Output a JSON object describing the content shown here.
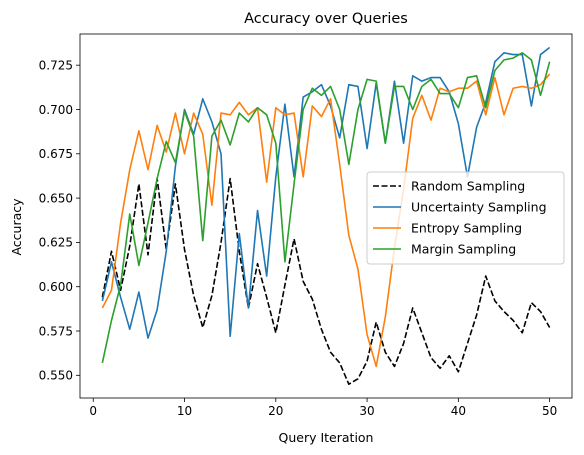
{
  "chart_data": {
    "type": "line",
    "title": "Accuracy over Queries",
    "xlabel": "Query Iteration",
    "ylabel": "Accuracy",
    "xlim": [
      -1.45,
      52.45
    ],
    "ylim": [
      0.5372,
      0.7426
    ],
    "x_ticks": [
      0,
      10,
      20,
      30,
      40,
      50
    ],
    "y_ticks": [
      0.55,
      0.575,
      0.6,
      0.625,
      0.65,
      0.675,
      0.7,
      0.725
    ],
    "x_tick_labels": [
      "0",
      "10",
      "20",
      "30",
      "40",
      "50"
    ],
    "y_tick_labels": [
      "0.550",
      "0.575",
      "0.600",
      "0.625",
      "0.650",
      "0.675",
      "0.700",
      "0.725"
    ],
    "grid": false,
    "legend_position": "center-right",
    "x": [
      1,
      2,
      3,
      4,
      5,
      6,
      7,
      8,
      9,
      10,
      11,
      12,
      13,
      14,
      15,
      16,
      17,
      18,
      19,
      20,
      21,
      22,
      23,
      24,
      25,
      26,
      27,
      28,
      29,
      30,
      31,
      32,
      33,
      34,
      35,
      36,
      37,
      38,
      39,
      40,
      41,
      42,
      43,
      44,
      45,
      46,
      47,
      48,
      49,
      50
    ],
    "series": [
      {
        "name": "Random Sampling",
        "color": "#000000",
        "dash": "dashed",
        "values": [
          0.594,
          0.62,
          0.598,
          0.623,
          0.658,
          0.618,
          0.661,
          0.621,
          0.658,
          0.621,
          0.595,
          0.577,
          0.595,
          0.625,
          0.661,
          0.62,
          0.588,
          0.613,
          0.594,
          0.574,
          0.601,
          0.627,
          0.603,
          0.593,
          0.576,
          0.563,
          0.557,
          0.545,
          0.548,
          0.558,
          0.58,
          0.563,
          0.555,
          0.568,
          0.588,
          0.574,
          0.56,
          0.554,
          0.561,
          0.552,
          0.568,
          0.584,
          0.606,
          0.592,
          0.586,
          0.581,
          0.574,
          0.591,
          0.586,
          0.577
        ]
      },
      {
        "name": "Uncertainty Sampling",
        "color": "#1f77b4",
        "dash": "solid",
        "values": [
          0.592,
          0.614,
          0.594,
          0.576,
          0.597,
          0.571,
          0.587,
          0.62,
          0.668,
          0.7,
          0.686,
          0.706,
          0.693,
          0.675,
          0.572,
          0.63,
          0.588,
          0.643,
          0.606,
          0.662,
          0.703,
          0.662,
          0.707,
          0.71,
          0.714,
          0.702,
          0.684,
          0.714,
          0.713,
          0.678,
          0.715,
          0.681,
          0.716,
          0.681,
          0.719,
          0.716,
          0.718,
          0.718,
          0.71,
          0.692,
          0.662,
          0.69,
          0.704,
          0.727,
          0.732,
          0.731,
          0.731,
          0.702,
          0.731,
          0.735
        ]
      },
      {
        "name": "Entropy Sampling",
        "color": "#ff7f0e",
        "dash": "solid",
        "values": [
          0.588,
          0.598,
          0.636,
          0.666,
          0.688,
          0.666,
          0.691,
          0.676,
          0.698,
          0.675,
          0.698,
          0.686,
          0.646,
          0.698,
          0.697,
          0.704,
          0.697,
          0.701,
          0.659,
          0.701,
          0.697,
          0.698,
          0.662,
          0.702,
          0.696,
          0.706,
          0.669,
          0.629,
          0.61,
          0.573,
          0.555,
          0.583,
          0.622,
          0.655,
          0.695,
          0.708,
          0.694,
          0.712,
          0.71,
          0.712,
          0.712,
          0.716,
          0.697,
          0.718,
          0.697,
          0.712,
          0.713,
          0.712,
          0.714,
          0.72
        ]
      },
      {
        "name": "Margin Sampling",
        "color": "#2ca02c",
        "dash": "solid",
        "values": [
          0.557,
          0.581,
          0.601,
          0.641,
          0.612,
          0.636,
          0.661,
          0.682,
          0.67,
          0.699,
          0.685,
          0.626,
          0.685,
          0.694,
          0.68,
          0.698,
          0.693,
          0.701,
          0.697,
          0.681,
          0.614,
          0.658,
          0.7,
          0.712,
          0.708,
          0.713,
          0.7,
          0.669,
          0.7,
          0.717,
          0.716,
          0.681,
          0.713,
          0.713,
          0.7,
          0.713,
          0.717,
          0.709,
          0.709,
          0.701,
          0.718,
          0.719,
          0.701,
          0.722,
          0.728,
          0.729,
          0.732,
          0.728,
          0.708,
          0.727
        ]
      }
    ]
  }
}
